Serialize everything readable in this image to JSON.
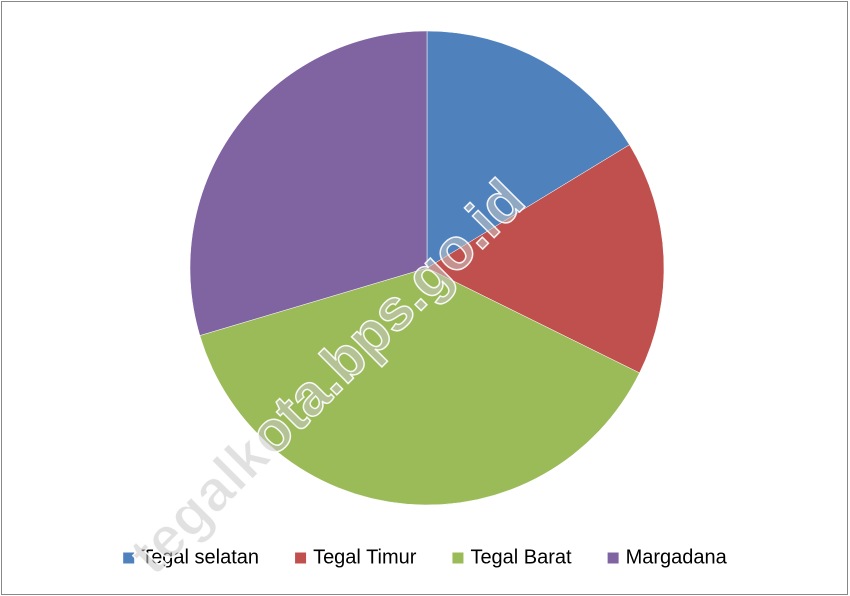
{
  "chart_data": {
    "type": "pie",
    "categories": [
      "Tegal selatan",
      "Tegal Timur",
      "Tegal Barat",
      "Margadana"
    ],
    "values": [
      16.3,
      16.0,
      38.1,
      29.6
    ],
    "colors": [
      "#4f81bd",
      "#c0504d",
      "#9bbb59",
      "#8064a2"
    ],
    "legend": "bottom",
    "watermark": "tegalkota.bps.go.id"
  }
}
